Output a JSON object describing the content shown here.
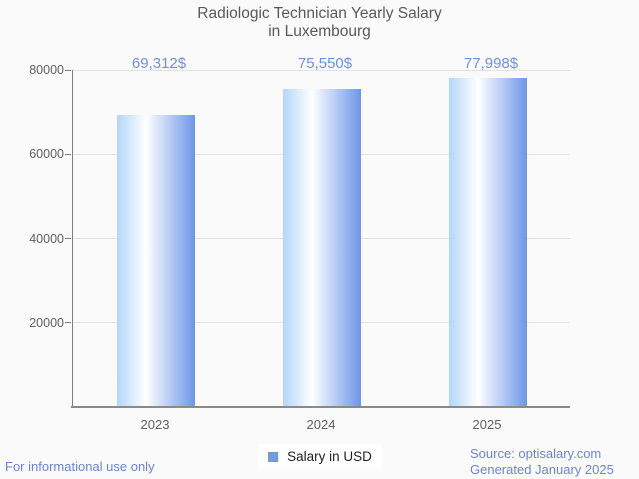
{
  "title": {
    "line1": "Radiologic Technician Yearly Salary",
    "line2": "in Luxembourg"
  },
  "chart_data": {
    "type": "bar",
    "categories": [
      "2023",
      "2024",
      "2025"
    ],
    "series": [
      {
        "name": "Salary in USD",
        "values": [
          69312,
          75550,
          77998
        ]
      }
    ],
    "value_labels": [
      "69,312$",
      "75,550$",
      "77,998$"
    ],
    "ylim": [
      0,
      80000
    ],
    "yticks": [
      20000,
      40000,
      60000,
      80000
    ],
    "grid": true,
    "legend_position": "bottom"
  },
  "legend": {
    "label": "Salary in USD"
  },
  "footer": {
    "disclaimer": "For informational use only",
    "source": "Source: optisalary.com",
    "generated": "Generated January 2025"
  },
  "colors": {
    "background": "#fafafa",
    "title_text": "#58595b",
    "axis_text": "#606060",
    "axis_line": "#7d7d7d",
    "baseline": "#8a8a8a",
    "gridline": "#e3e3e3",
    "value_label_text": "#6e91d9",
    "footer_text": "#6c84d6",
    "bar_gradient_left": "#b3d6fa",
    "bar_gradient_mid": "#ffffff",
    "bar_gradient_right": "#6d96e8",
    "legend_marker_fill": "#6aa0e4",
    "legend_marker_border": "#8493aa"
  }
}
